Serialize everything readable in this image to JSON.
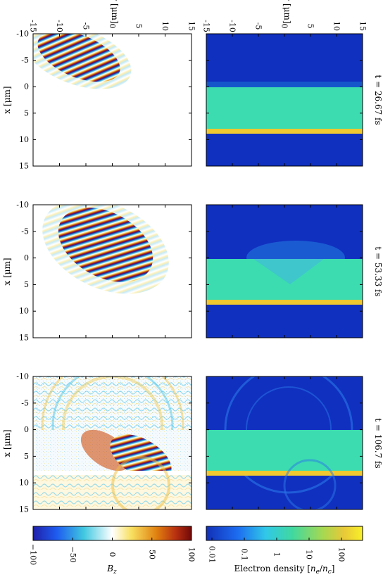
{
  "chart_data": {
    "type": "heatmap",
    "top_axis_label": "y [μm]",
    "left_axis_label": "x [μm]",
    "y_ticks": [
      "-15",
      "-10",
      "-5",
      "0",
      "5",
      "10",
      "15"
    ],
    "x_ticks": [
      "-10",
      "-5",
      "0",
      "5",
      "10",
      "15"
    ],
    "y_range": [
      -15,
      15
    ],
    "x_range": [
      -10,
      15
    ],
    "target": {
      "slab_x": [
        0,
        8
      ],
      "dense_layer_x": [
        8,
        9
      ]
    },
    "times": [
      "t = 26.67 fs",
      "t = 53.33 fs",
      "t = 106.7 fs"
    ],
    "left_column_quantity": "B_z",
    "right_column_quantity": "Electron density [n_e/n_c]",
    "bz_colorbar": {
      "label": "Bz",
      "ticks": [
        "−100",
        "−50",
        "0",
        "50",
        "100"
      ],
      "range": [
        -100,
        100
      ]
    },
    "ne_colorbar": {
      "label": "Electron density [ne/nc]",
      "ticks": [
        "0.01",
        "0.1",
        "1",
        "10",
        "100"
      ],
      "scale": "log"
    },
    "pulse_front_x": [
      1,
      4.5,
      8
    ]
  }
}
